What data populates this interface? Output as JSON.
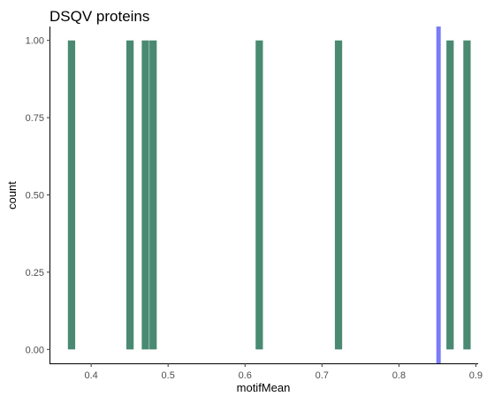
{
  "chart_data": {
    "type": "bar",
    "title": "DSQV proteins",
    "xlabel": "motifMean",
    "ylabel": "count",
    "xlim": [
      0.347,
      0.903
    ],
    "ylim": [
      -0.045,
      1.045
    ],
    "x_ticks": [
      {
        "value": 0.4,
        "label": "0.4"
      },
      {
        "value": 0.5,
        "label": "0.5"
      },
      {
        "value": 0.6,
        "label": "0.6"
      },
      {
        "value": 0.7,
        "label": "0.7"
      },
      {
        "value": 0.8,
        "label": "0.8"
      },
      {
        "value": 0.9,
        "label": "0.9"
      }
    ],
    "y_ticks": [
      {
        "value": 0,
        "label": "0.00"
      },
      {
        "value": 0.25,
        "label": "0.25"
      },
      {
        "value": 0.5,
        "label": "0.50"
      },
      {
        "value": 0.75,
        "label": "0.75"
      },
      {
        "value": 1,
        "label": "1.00"
      }
    ],
    "bar_width": 0.0095,
    "bars": [
      {
        "x": 0.3745,
        "count": 1
      },
      {
        "x": 0.4505,
        "count": 1
      },
      {
        "x": 0.4705,
        "count": 1
      },
      {
        "x": 0.4805,
        "count": 1
      },
      {
        "x": 0.6185,
        "count": 1
      },
      {
        "x": 0.7215,
        "count": 1
      },
      {
        "x": 0.8665,
        "count": 1
      },
      {
        "x": 0.8885,
        "count": 1
      }
    ],
    "vline": {
      "x": 0.8515,
      "color": "#7B7BF5"
    },
    "bar_color": "#4A8A73",
    "grid": false
  }
}
